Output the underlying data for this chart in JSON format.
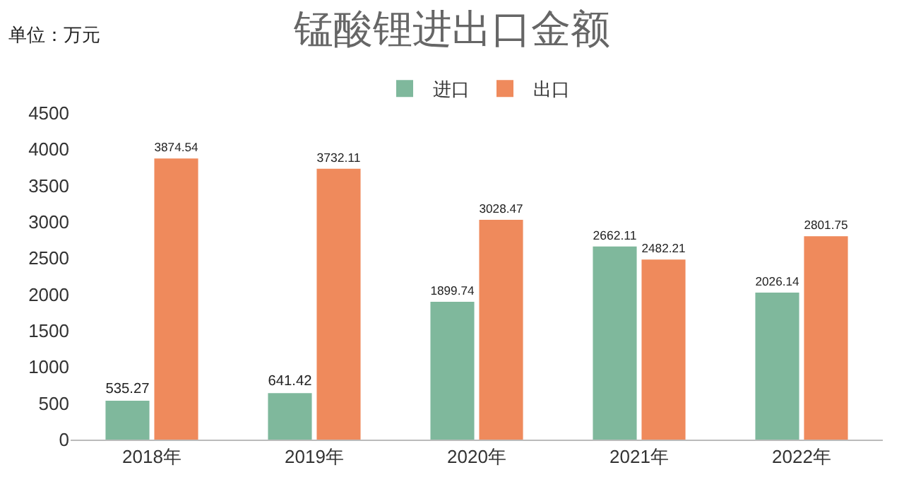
{
  "chart_data": {
    "type": "bar",
    "title": "锰酸锂进出口金额",
    "annotations": [
      "单位：万元"
    ],
    "categories": [
      "2018年",
      "2019年",
      "2020年",
      "2021年",
      "2022年"
    ],
    "series": [
      {
        "name": "进口",
        "color": "#7fb89c",
        "values": [
          535.27,
          641.42,
          1899.74,
          2662.11,
          2026.14
        ]
      },
      {
        "name": "出口",
        "color": "#ef8a5c",
        "values": [
          3874.54,
          3732.11,
          3028.47,
          2482.21,
          2801.75
        ]
      }
    ],
    "ylim": [
      0,
      4500
    ],
    "yticks": [
      0,
      500,
      1000,
      1500,
      2000,
      2500,
      3000,
      3500,
      4000,
      4500
    ],
    "grid": false,
    "legend": "top",
    "data_labels": true
  }
}
